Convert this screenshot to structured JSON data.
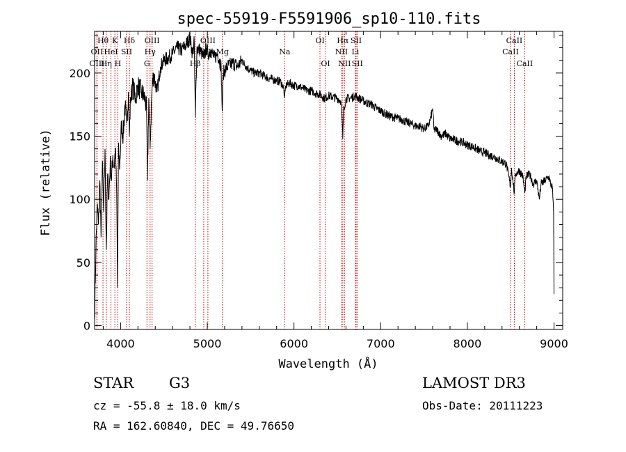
{
  "chart_data": {
    "type": "line",
    "title": "spec-55919-F5591906_sp10-110.fits",
    "xlabel": "Wavelength (Å)",
    "ylabel": "Flux (relative)",
    "xlim": [
      3700,
      9100
    ],
    "ylim": [
      -3,
      233
    ],
    "xticks": [
      4000,
      5000,
      6000,
      7000,
      8000,
      9000
    ],
    "yticks": [
      0,
      50,
      100,
      150,
      200
    ],
    "minor_x_step": 200,
    "minor_y_step": 10,
    "grid": false,
    "series": [
      {
        "name": "flux",
        "anchors": [
          [
            3700,
            5
          ],
          [
            3715,
            60
          ],
          [
            3730,
            95
          ],
          [
            3745,
            80
          ],
          [
            3760,
            115
          ],
          [
            3775,
            70
          ],
          [
            3790,
            130
          ],
          [
            3805,
            90
          ],
          [
            3820,
            140
          ],
          [
            3835,
            60
          ],
          [
            3850,
            120
          ],
          [
            3865,
            100
          ],
          [
            3880,
            130
          ],
          [
            3895,
            115
          ],
          [
            3910,
            135
          ],
          [
            3925,
            125
          ],
          [
            3940,
            140
          ],
          [
            3955,
            105
          ],
          [
            3965,
            30
          ],
          [
            3975,
            140
          ],
          [
            3990,
            125
          ],
          [
            4010,
            160
          ],
          [
            4030,
            150
          ],
          [
            4050,
            175
          ],
          [
            4070,
            160
          ],
          [
            4090,
            185
          ],
          [
            4101,
            150
          ],
          [
            4115,
            180
          ],
          [
            4140,
            190
          ],
          [
            4170,
            180
          ],
          [
            4200,
            190
          ],
          [
            4240,
            185
          ],
          [
            4280,
            180
          ],
          [
            4300,
            170
          ],
          [
            4310,
            115
          ],
          [
            4325,
            180
          ],
          [
            4340,
            140
          ],
          [
            4360,
            185
          ],
          [
            4380,
            200
          ],
          [
            4420,
            185
          ],
          [
            4460,
            205
          ],
          [
            4500,
            210
          ],
          [
            4550,
            212
          ],
          [
            4600,
            215
          ],
          [
            4650,
            220
          ],
          [
            4700,
            218
          ],
          [
            4750,
            222
          ],
          [
            4800,
            228
          ],
          [
            4830,
            215
          ],
          [
            4850,
            225
          ],
          [
            4861,
            165
          ],
          [
            4880,
            220
          ],
          [
            4920,
            218
          ],
          [
            4957,
            212
          ],
          [
            4990,
            220
          ],
          [
            5007,
            215
          ],
          [
            5040,
            218
          ],
          [
            5080,
            212
          ],
          [
            5120,
            215
          ],
          [
            5160,
            205
          ],
          [
            5172,
            170
          ],
          [
            5185,
            200
          ],
          [
            5230,
            205
          ],
          [
            5300,
            208
          ],
          [
            5350,
            205
          ],
          [
            5400,
            210
          ],
          [
            5450,
            205
          ],
          [
            5500,
            202
          ],
          [
            5550,
            200
          ],
          [
            5600,
            200
          ],
          [
            5650,
            198
          ],
          [
            5700,
            196
          ],
          [
            5750,
            195
          ],
          [
            5800,
            194
          ],
          [
            5850,
            193
          ],
          [
            5880,
            188
          ],
          [
            5893,
            180
          ],
          [
            5905,
            190
          ],
          [
            5950,
            192
          ],
          [
            6000,
            190
          ],
          [
            6050,
            190
          ],
          [
            6100,
            188
          ],
          [
            6150,
            186
          ],
          [
            6200,
            186
          ],
          [
            6250,
            184
          ],
          [
            6300,
            183
          ],
          [
            6350,
            180
          ],
          [
            6400,
            182
          ],
          [
            6450,
            181
          ],
          [
            6500,
            180
          ],
          [
            6540,
            178
          ],
          [
            6555,
            165
          ],
          [
            6563,
            148
          ],
          [
            6572,
            170
          ],
          [
            6600,
            180
          ],
          [
            6650,
            180
          ],
          [
            6700,
            182
          ],
          [
            6750,
            180
          ],
          [
            6800,
            178
          ],
          [
            6850,
            176
          ],
          [
            6900,
            175
          ],
          [
            6950,
            172
          ],
          [
            7000,
            170
          ],
          [
            7050,
            168
          ],
          [
            7100,
            166
          ],
          [
            7150,
            165
          ],
          [
            7200,
            164
          ],
          [
            7250,
            163
          ],
          [
            7300,
            161
          ],
          [
            7350,
            160
          ],
          [
            7400,
            158
          ],
          [
            7450,
            158
          ],
          [
            7500,
            156
          ],
          [
            7550,
            158
          ],
          [
            7580,
            165
          ],
          [
            7600,
            172
          ],
          [
            7615,
            155
          ],
          [
            7650,
            155
          ],
          [
            7700,
            150
          ],
          [
            7750,
            152
          ],
          [
            7800,
            148
          ],
          [
            7850,
            147
          ],
          [
            7900,
            146
          ],
          [
            7950,
            145
          ],
          [
            8000,
            143
          ],
          [
            8050,
            142
          ],
          [
            8100,
            140
          ],
          [
            8150,
            138
          ],
          [
            8200,
            137
          ],
          [
            8250,
            135
          ],
          [
            8300,
            134
          ],
          [
            8350,
            132
          ],
          [
            8400,
            130
          ],
          [
            8450,
            128
          ],
          [
            8498,
            110
          ],
          [
            8510,
            125
          ],
          [
            8542,
            105
          ],
          [
            8555,
            120
          ],
          [
            8600,
            123
          ],
          [
            8640,
            118
          ],
          [
            8662,
            105
          ],
          [
            8680,
            118
          ],
          [
            8720,
            120
          ],
          [
            8760,
            112
          ],
          [
            8800,
            115
          ],
          [
            8830,
            100
          ],
          [
            8850,
            112
          ],
          [
            8900,
            115
          ],
          [
            8940,
            118
          ],
          [
            8960,
            112
          ],
          [
            8980,
            110
          ],
          [
            8995,
            90
          ],
          [
            9000,
            25
          ]
        ]
      }
    ],
    "lines": [
      {
        "name": "Hθ",
        "wl": 3797,
        "row": 0
      },
      {
        "name": "OII",
        "wl": 3727,
        "row": 1
      },
      {
        "name": "OIII",
        "wl": 3727,
        "row": 2
      },
      {
        "name": "Hη",
        "wl": 3835,
        "row": 2
      },
      {
        "name": "K",
        "wl": 3934,
        "row": 0
      },
      {
        "name": "HeI",
        "wl": 3889,
        "row": 1
      },
      {
        "name": "H",
        "wl": 3968,
        "row": 2
      },
      {
        "name": "Hδ",
        "wl": 4101,
        "row": 0
      },
      {
        "name": "SII",
        "wl": 4069,
        "row": 1
      },
      {
        "name": "OIII",
        "wl": 4363,
        "row": 0
      },
      {
        "name": "Hγ",
        "wl": 4340,
        "row": 1
      },
      {
        "name": "G",
        "wl": 4304,
        "row": 2
      },
      {
        "name": "Hβ",
        "wl": 4861,
        "row": 2
      },
      {
        "name": "OIII",
        "wl": 5007,
        "row": 0
      },
      {
        "name": "OIII",
        "wl": 4959,
        "row": 1
      },
      {
        "name": "Mg",
        "wl": 5175,
        "row": 1
      },
      {
        "name": "Na",
        "wl": 5893,
        "row": 1
      },
      {
        "name": "OI",
        "wl": 6300,
        "row": 0
      },
      {
        "name": "OI",
        "wl": 6364,
        "row": 2
      },
      {
        "name": "Hα",
        "wl": 6563,
        "row": 0
      },
      {
        "name": "NII",
        "wl": 6548,
        "row": 1
      },
      {
        "name": "NII",
        "wl": 6583,
        "row": 2
      },
      {
        "name": "SII",
        "wl": 6717,
        "row": 0
      },
      {
        "name": "Li",
        "wl": 6708,
        "row": 1
      },
      {
        "name": "SII",
        "wl": 6731,
        "row": 2
      },
      {
        "name": "CaII",
        "wl": 8542,
        "row": 0
      },
      {
        "name": "CaII",
        "wl": 8498,
        "row": 1
      },
      {
        "name": "CaII",
        "wl": 8662,
        "row": 2
      }
    ],
    "line_color": "#cc0000"
  },
  "info": {
    "class_label": "STAR",
    "subclass": "G3",
    "redshift_text": "cz = -55.8 ± 18.0 km/s",
    "coords_text": "RA = 162.60840, DEC =  49.76650",
    "survey": "LAMOST DR3",
    "obs_date": "Obs-Date: 20111223"
  }
}
